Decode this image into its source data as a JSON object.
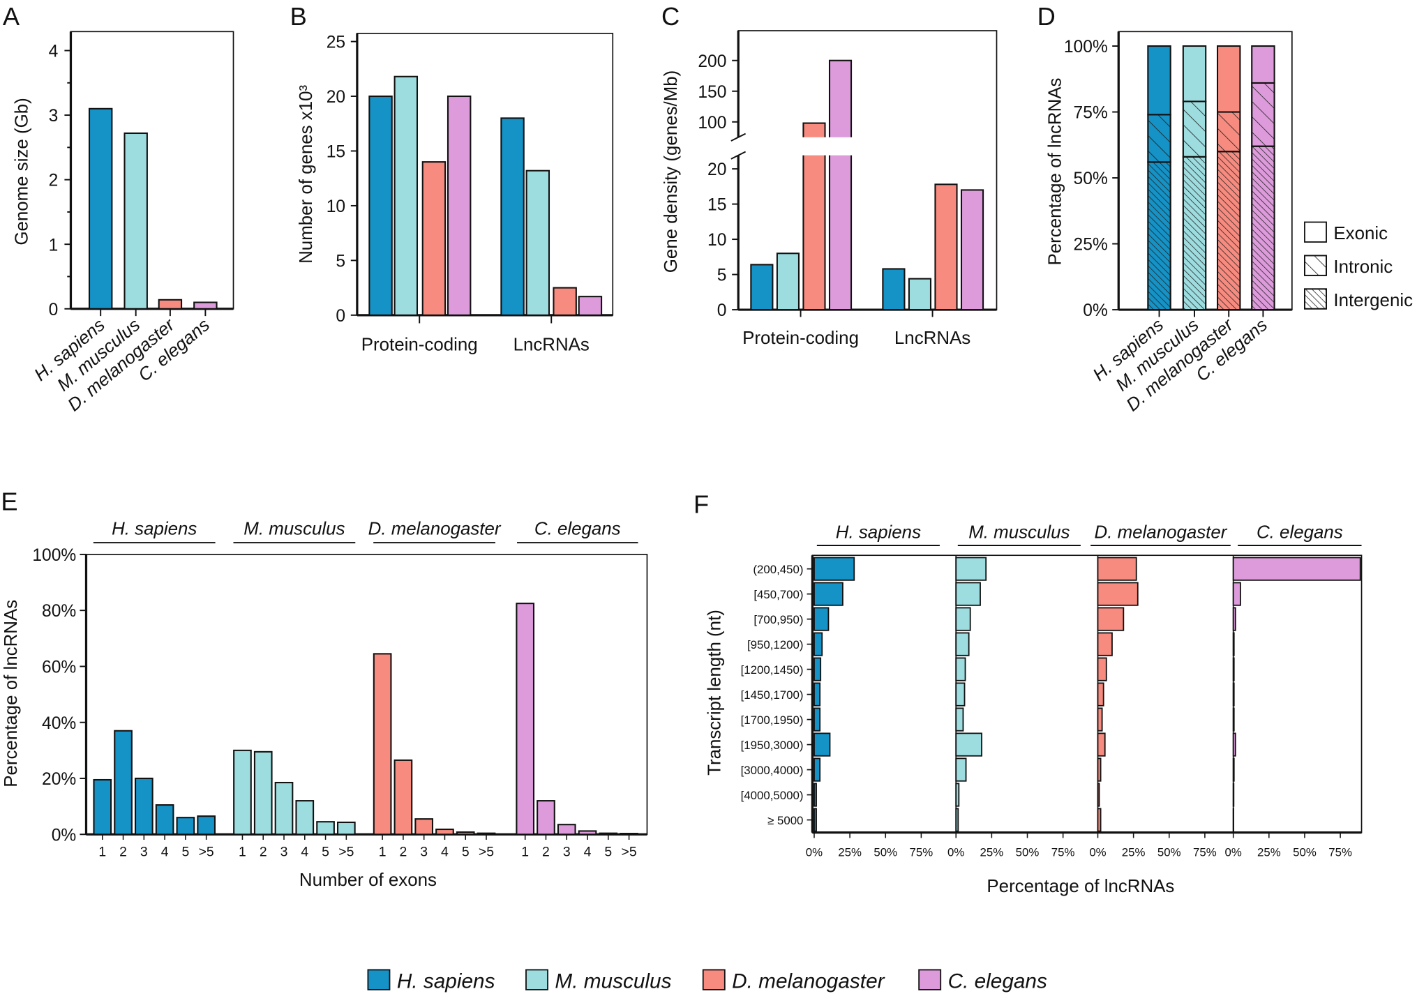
{
  "species": [
    {
      "name": "H. sapiens",
      "color": "#1592c6"
    },
    {
      "name": "M. musculus",
      "color": "#9ddde0"
    },
    {
      "name": "D. melanogaster",
      "color": "#f88b7f"
    },
    {
      "name": "C. elegans",
      "color": "#dd9bdc"
    }
  ],
  "chart_data": [
    {
      "panel_label": "A",
      "type": "bar",
      "ylabel": "Genome size (Gb)",
      "categories": [
        "H. sapiens",
        "M. musculus",
        "D. melanogaster",
        "C. elegans"
      ],
      "values": [
        3.1,
        2.72,
        0.14,
        0.1
      ],
      "ylim": [
        0,
        4.3
      ],
      "yticks": [
        "0",
        "1",
        "2",
        "3",
        "4"
      ]
    },
    {
      "panel_label": "B",
      "type": "bar",
      "ylabel": "Number of genes x10³",
      "categories": [
        "Protein-coding",
        "LncRNAs"
      ],
      "series": [
        {
          "name": "H. sapiens",
          "values": [
            20,
            18
          ]
        },
        {
          "name": "M. musculus",
          "values": [
            21.8,
            13.2
          ]
        },
        {
          "name": "D. melanogaster",
          "values": [
            14,
            2.5
          ]
        },
        {
          "name": "C. elegans",
          "values": [
            20,
            1.7
          ]
        }
      ],
      "ylim": [
        0,
        25.7
      ],
      "yticks": [
        "0",
        "5",
        "10",
        "15",
        "20",
        "25"
      ]
    },
    {
      "panel_label": "C",
      "type": "bar",
      "ylabel": "Gene density (genes/Mb)",
      "categories": [
        "Protein-coding",
        "LncRNAs"
      ],
      "series": [
        {
          "name": "H. sapiens",
          "values": [
            6.4,
            5.8
          ]
        },
        {
          "name": "M. musculus",
          "values": [
            8,
            4.4
          ]
        },
        {
          "name": "D. melanogaster",
          "values": [
            98,
            17.8
          ]
        },
        {
          "name": "C. elegans",
          "values": [
            200,
            17
          ]
        }
      ],
      "axis_break": [
        22,
        75
      ],
      "ylim": [
        0,
        215
      ],
      "yticks_lower": [
        "0",
        "5",
        "10",
        "15",
        "20"
      ],
      "yticks_upper": [
        "100",
        "150",
        "200"
      ]
    },
    {
      "panel_label": "D",
      "type": "bar",
      "stacked": true,
      "ylabel": "Percentage of lncRNAs",
      "categories": [
        "H. sapiens",
        "M. musculus",
        "D. melanogaster",
        "C. elegans"
      ],
      "series": [
        {
          "name": "Intergenic",
          "pattern": "dense-hatch",
          "values": [
            56,
            58,
            60,
            62
          ]
        },
        {
          "name": "Intronic",
          "pattern": "sparse-hatch",
          "values": [
            18,
            21,
            15,
            24
          ]
        },
        {
          "name": "Exonic",
          "pattern": "solid",
          "values": [
            26,
            21,
            25,
            14
          ]
        }
      ],
      "ylim": [
        0,
        100
      ],
      "yticks": [
        "0%",
        "25%",
        "50%",
        "75%",
        "100%"
      ],
      "legend": [
        "Exonic",
        "Intronic",
        "Intergenic"
      ],
      "legend_position": "right"
    },
    {
      "panel_label": "E",
      "type": "bar",
      "ylabel": "Percentage of lncRNAs",
      "xlabel": "Number of exons",
      "categories": [
        "1",
        "2",
        "3",
        "4",
        "5",
        ">5"
      ],
      "series": [
        {
          "name": "H. sapiens",
          "values": [
            19.5,
            37,
            20,
            10.5,
            6,
            6.5
          ]
        },
        {
          "name": "M. musculus",
          "values": [
            30,
            29.5,
            18.5,
            12,
            4.5,
            4.3
          ]
        },
        {
          "name": "D. melanogaster",
          "values": [
            64.5,
            26.5,
            5.5,
            1.8,
            0.8,
            0.4
          ]
        },
        {
          "name": "C. elegans",
          "values": [
            82.5,
            12,
            3.5,
            1.2,
            0.4,
            0.3
          ]
        }
      ],
      "ylim": [
        0,
        100
      ],
      "yticks": [
        "0%",
        "20%",
        "40%",
        "60%",
        "80%",
        "100%"
      ]
    },
    {
      "panel_label": "F",
      "type": "bar",
      "orientation": "horizontal",
      "ylabel": "Transcript length (nt)",
      "xlabel": "Percentage of lncRNAs",
      "categories": [
        "(200,450)",
        "[450,700)",
        "[700,950)",
        "[950,1200)",
        "[1200,1450)",
        "[1450,1700)",
        "[1700,1950)",
        "[1950,3000)",
        "[3000,4000)",
        "[4000,5000)",
        "≥ 5000"
      ],
      "series": [
        {
          "name": "H. sapiens",
          "values": [
            28,
            20,
            10,
            5.5,
            4.5,
            4,
            4,
            11,
            4,
            1.5,
            1.5
          ]
        },
        {
          "name": "M. musculus",
          "values": [
            21,
            17,
            10,
            9,
            6.5,
            6,
            5,
            18,
            7,
            2,
            1.5
          ]
        },
        {
          "name": "D. melanogaster",
          "values": [
            27,
            28,
            18,
            10,
            6,
            4,
            3,
            5,
            2,
            1,
            2
          ]
        },
        {
          "name": "C. elegans",
          "values": [
            89,
            5,
            1.5,
            0.5,
            0.5,
            0.5,
            0.5,
            1.5,
            0.5,
            0.3,
            0.2
          ]
        }
      ],
      "xlim": [
        0,
        95
      ],
      "xticks": [
        "0%",
        "25%",
        "50%",
        "75%"
      ]
    }
  ],
  "legend": [
    "H. sapiens",
    "M. musculus",
    "D. melanogaster",
    "C. elegans"
  ]
}
